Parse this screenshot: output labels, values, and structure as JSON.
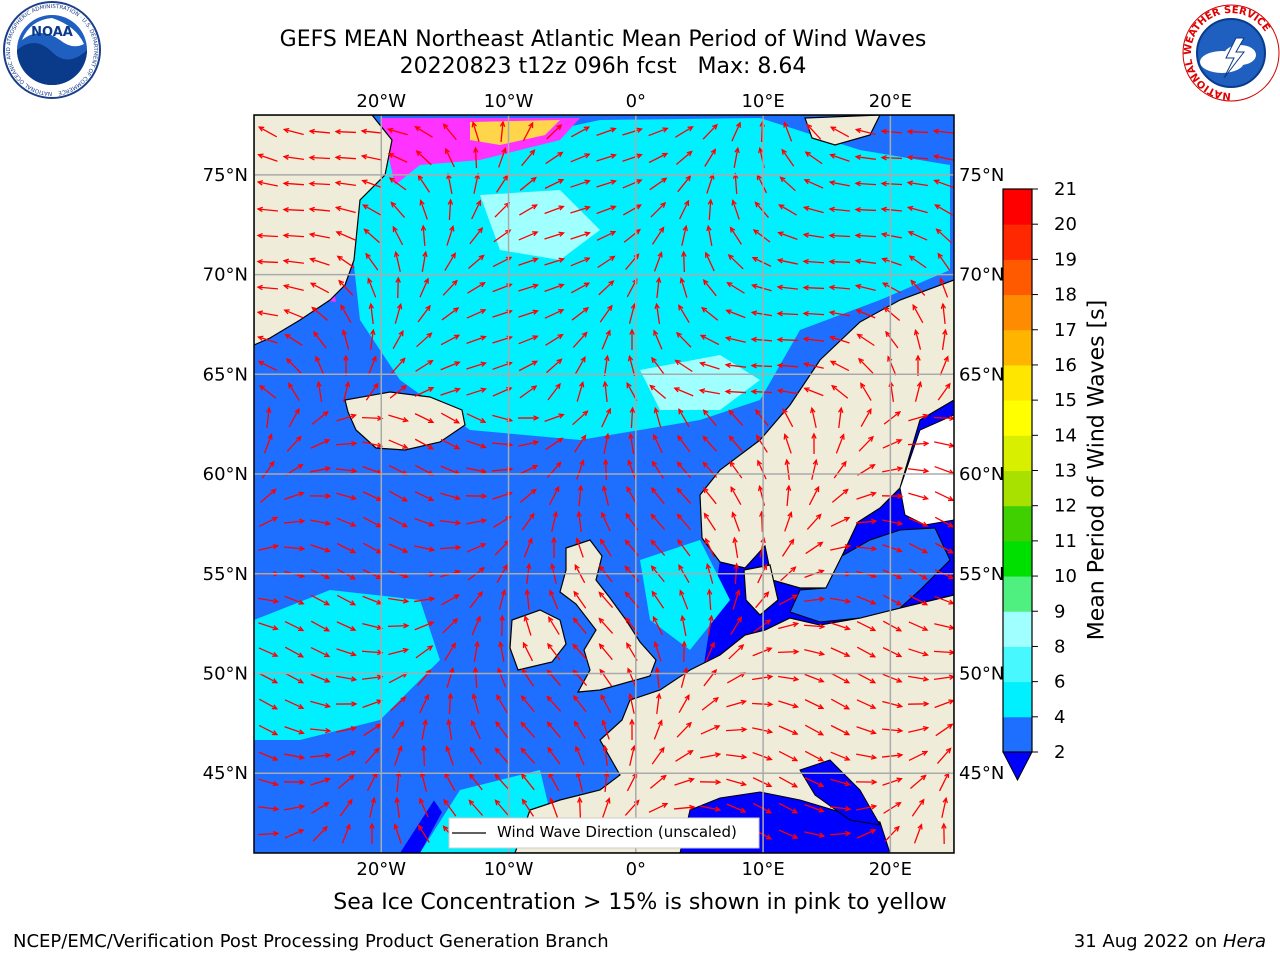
{
  "header": {
    "title_line1": "GEFS MEAN Northeast Atlantic Mean Period of Wind Waves",
    "title_line2": "20220823 t12z 096h fcst   Max: 8.64"
  },
  "map": {
    "lon_range": [
      -30,
      25
    ],
    "lat_range": [
      41,
      78
    ],
    "lon_ticks": [
      {
        "value": -20,
        "label": "20°W"
      },
      {
        "value": -10,
        "label": "10°W"
      },
      {
        "value": 0,
        "label": "0°"
      },
      {
        "value": 10,
        "label": "10°E"
      },
      {
        "value": 20,
        "label": "20°E"
      }
    ],
    "lat_ticks": [
      {
        "value": 75,
        "label": "75°N"
      },
      {
        "value": 70,
        "label": "70°N"
      },
      {
        "value": 65,
        "label": "65°N"
      },
      {
        "value": 60,
        "label": "60°N"
      },
      {
        "value": 55,
        "label": "55°N"
      },
      {
        "value": 50,
        "label": "50°N"
      },
      {
        "value": 45,
        "label": "45°N"
      }
    ],
    "legend_label": "Wind Wave Direction (unscaled)",
    "colors": {
      "land": "#efedda",
      "period_2_4": "#0000ff",
      "period_4_6": "#1e6fff",
      "period_6_8": "#00f0ff",
      "period_8_9": "#a0ffff",
      "sea_ice": "#ff33ff",
      "arrow": "#ff0000"
    }
  },
  "colorbar": {
    "label": "Mean Period of Wind Waves [s]",
    "ticks": [
      "2",
      "4",
      "6",
      "8",
      "9",
      "10",
      "11",
      "12",
      "13",
      "14",
      "15",
      "16",
      "17",
      "18",
      "19",
      "20",
      "21"
    ],
    "colors": [
      "#1e6fff",
      "#00f0ff",
      "#48f8ff",
      "#a0ffff",
      "#50f080",
      "#00e000",
      "#40d000",
      "#a8e000",
      "#d8f000",
      "#ffff00",
      "#ffe600",
      "#ffb400",
      "#ff8c00",
      "#ff5a00",
      "#ff2800",
      "#ff0000"
    ]
  },
  "note": "Sea Ice Concentration > 15% is shown in pink to yellow",
  "footer": {
    "left": "NCEP/EMC/Verification Post Processing Product Generation Branch",
    "date": "31 Aug 2022 on ",
    "host": "Hera"
  },
  "logos": {
    "noaa_text": "NOAA",
    "noaa_ring": "NATIONAL OCEANIC AND ATMOSPHERIC ADMINISTRATION · U.S. DEPARTMENT OF COMMERCE",
    "nws_ring": "NATIONAL WEATHER SERVICE"
  }
}
